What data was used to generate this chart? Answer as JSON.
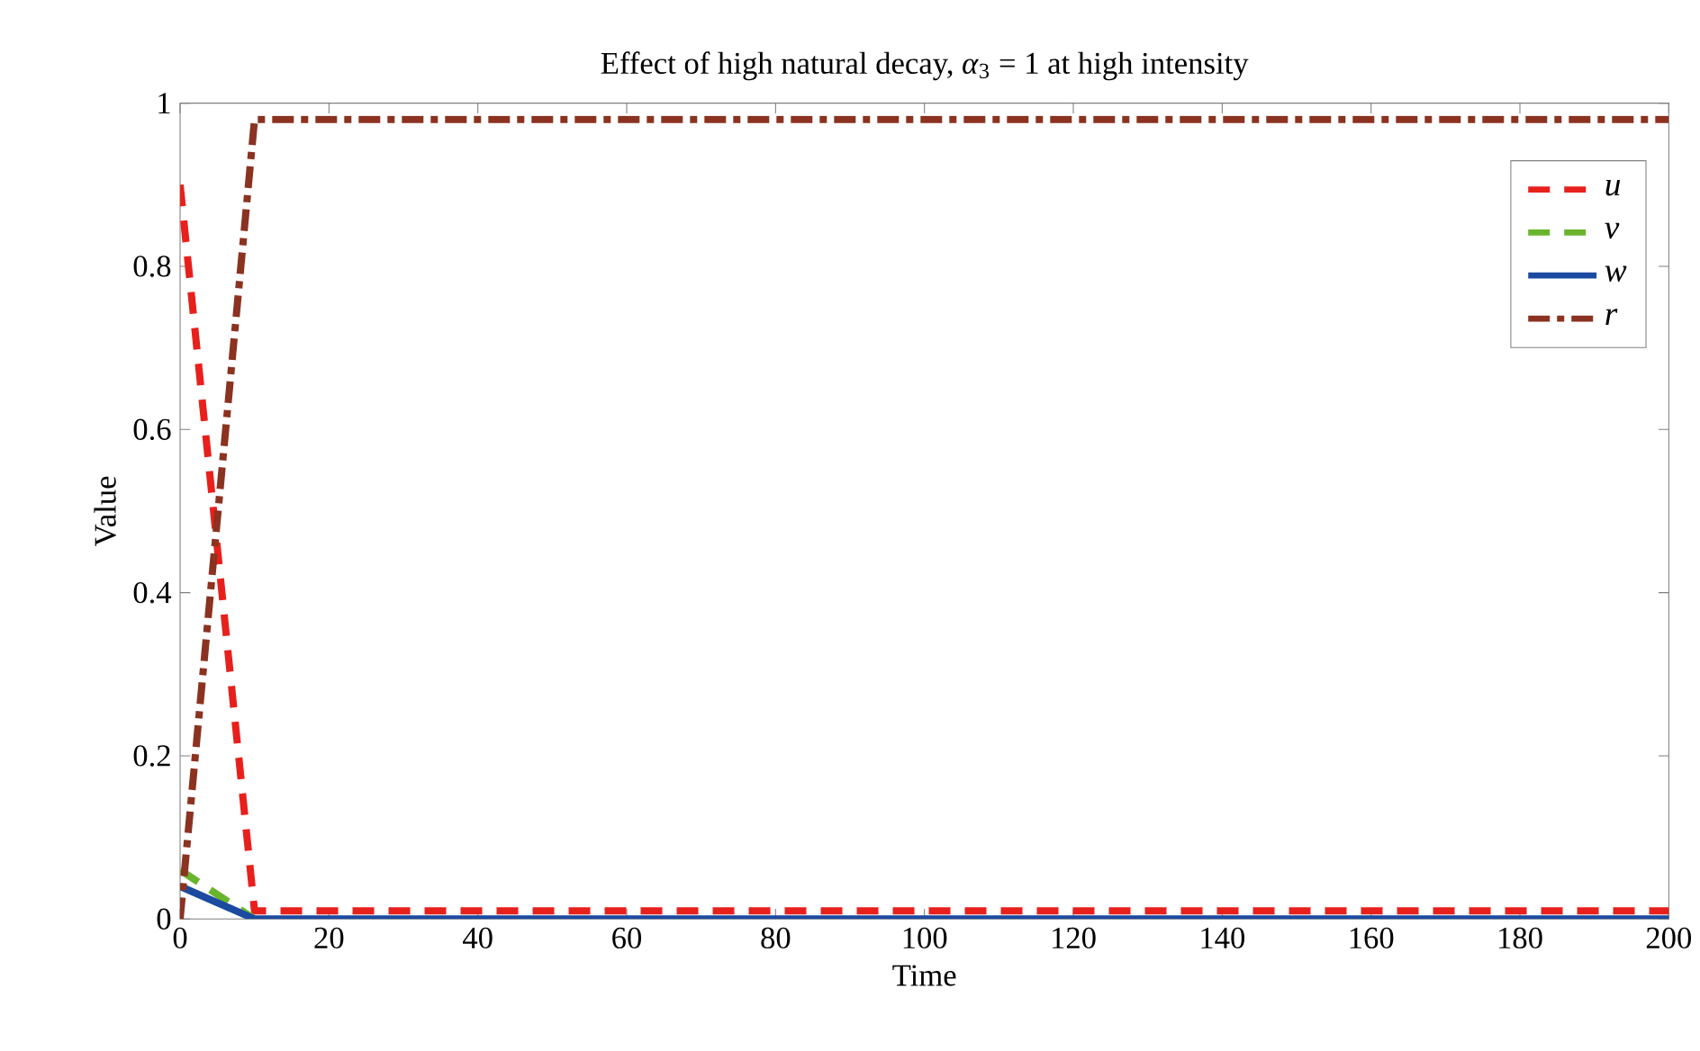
{
  "chart_data": {
    "type": "line",
    "title": "Effect of high natural decay, *α*$_{3}$ = 1 at high intensity",
    "xlabel": "Time",
    "ylabel": "Value",
    "x": [
      0,
      10,
      200
    ],
    "series": [
      {
        "name": "u",
        "color": "#e8201c",
        "values": [
          0.9,
          0.01,
          0.01
        ],
        "line_style": "dashed"
      },
      {
        "name": "v",
        "color": "#6ab42d",
        "values": [
          0.06,
          0,
          null
        ],
        "line_style": "dashed"
      },
      {
        "name": "w",
        "color": "#1c4aa0",
        "values": [
          0.04,
          0,
          0
        ],
        "line_style": "solid"
      },
      {
        "name": "r",
        "color": "#8b3220",
        "values": [
          0,
          0.98,
          0.98
        ],
        "line_style": "dashdot"
      }
    ],
    "xlim": [
      0,
      200
    ],
    "xticks": [
      0,
      20,
      40,
      60,
      80,
      100,
      120,
      140,
      160,
      180,
      200
    ],
    "ylim": [
      0,
      1
    ],
    "yticks": [
      0,
      0.2,
      0.4,
      0.6,
      0.8,
      1
    ],
    "legend": "top right",
    "grid": false,
    "marker": "none"
  }
}
